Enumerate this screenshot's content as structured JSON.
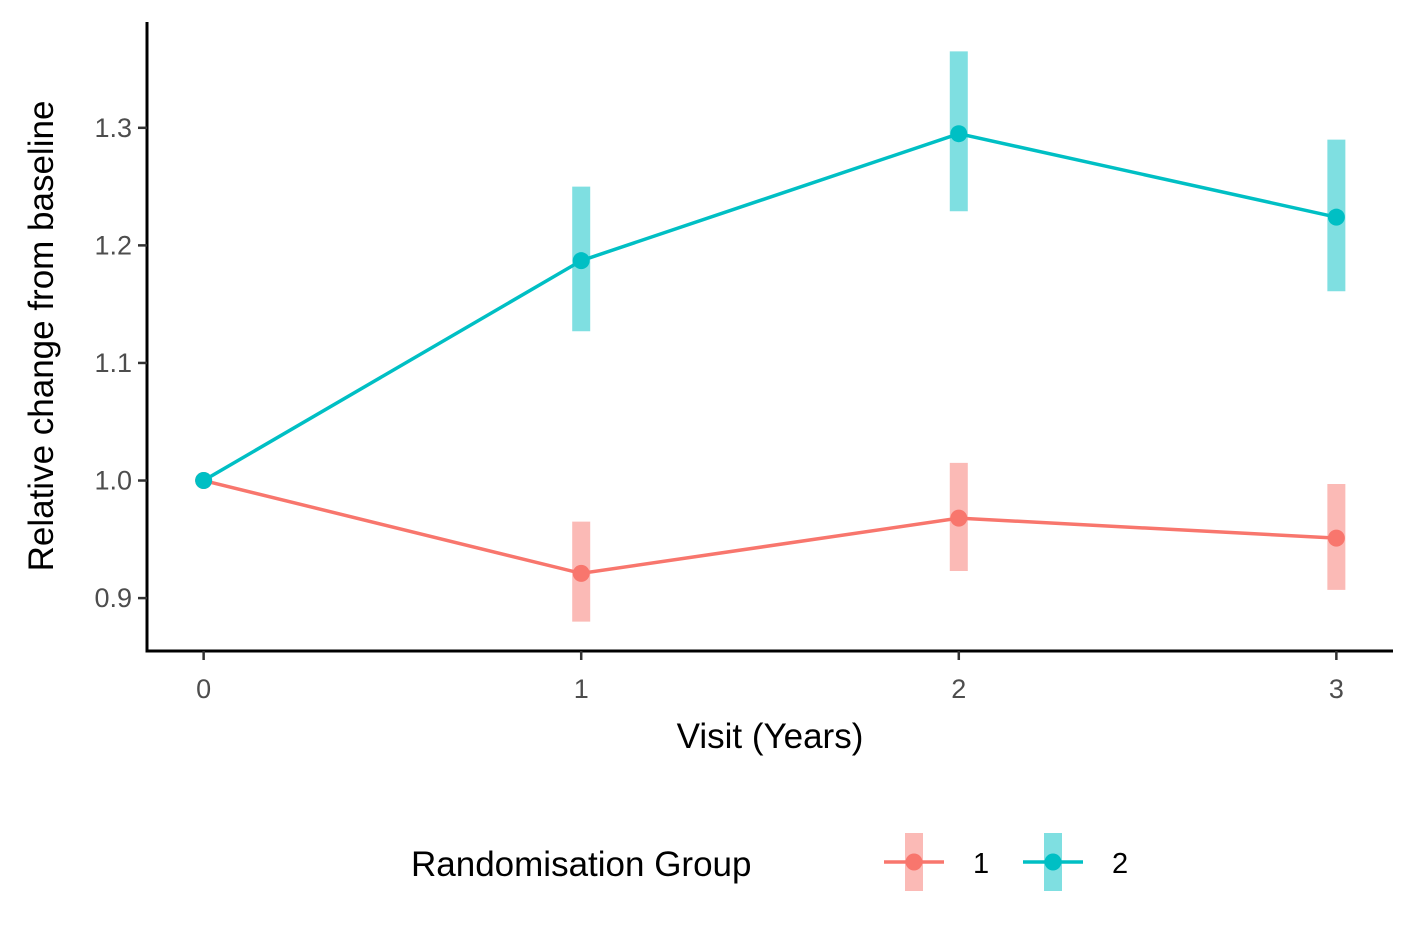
{
  "chart_data": {
    "type": "line",
    "title": "",
    "xlabel": "Visit (Years)",
    "ylabel": "Relative change from baseline",
    "x": [
      0,
      1,
      2,
      3
    ],
    "x_ticks": [
      "0",
      "1",
      "2",
      "3"
    ],
    "y_ticks": [
      "0.9",
      "1.0",
      "1.1",
      "1.2",
      "1.3"
    ],
    "y_tick_values": [
      0.9,
      1.0,
      1.1,
      1.2,
      1.3
    ],
    "xlim": [
      -0.15,
      3.15
    ],
    "ylim": [
      0.855,
      1.39
    ],
    "grid": false,
    "legend": {
      "title": "Randomisation Group",
      "position": "bottom",
      "entries": [
        "1",
        "2"
      ]
    },
    "series": [
      {
        "name": "1",
        "color": "#F8766D",
        "values": [
          1.0,
          0.921,
          0.968,
          0.951
        ],
        "lower": [
          null,
          0.88,
          0.923,
          0.907
        ],
        "upper": [
          null,
          0.965,
          1.015,
          0.997
        ]
      },
      {
        "name": "2",
        "color": "#00BFC4",
        "values": [
          1.0,
          1.187,
          1.295,
          1.224
        ],
        "lower": [
          null,
          1.127,
          1.229,
          1.161
        ],
        "upper": [
          null,
          1.25,
          1.365,
          1.29
        ]
      }
    ]
  }
}
